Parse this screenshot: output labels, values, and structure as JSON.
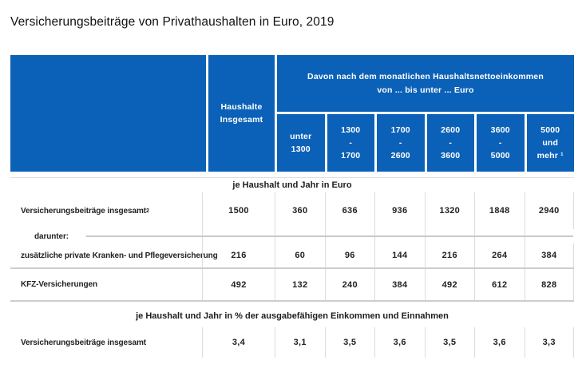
{
  "page": {
    "title": "Versicherungsbeiträge von Privathaushalten in Euro, 2019"
  },
  "colors": {
    "header_blue": "#0b61b7",
    "header_text": "#ffffff",
    "grid_line": "#dcdcdc",
    "body_text": "#222222"
  },
  "header": {
    "total_col": "Haushalte\nInsgesamt",
    "income_group": "Davon nach dem monatlichen Haushaltsnettoeinkommen\nvon ... bis unter ... Euro",
    "income_cols": [
      "unter\n1300",
      "1300\n-\n1700",
      "1700\n-\n2600",
      "2600\n-\n3600",
      "3600\n-\n5000",
      "5000\nund\nmehr ¹"
    ]
  },
  "section_euro": {
    "title": "je Haushalt und Jahr in Euro",
    "row_total": {
      "label": "Versicherungsbeiträge insgesamt",
      "footnote": "2",
      "values": [
        "1500",
        "360",
        "636",
        "936",
        "1320",
        "1848",
        "2940"
      ]
    },
    "darunter_label": "darunter:",
    "row_kranken": {
      "label": "zusätzliche private Kranken- und Pflegeversicherung",
      "values": [
        "216",
        "60",
        "96",
        "144",
        "216",
        "264",
        "384"
      ]
    },
    "row_kfz": {
      "label": "KFZ-Versicherungen",
      "values": [
        "492",
        "132",
        "240",
        "384",
        "492",
        "612",
        "828"
      ]
    }
  },
  "section_percent": {
    "title": "je Haushalt und Jahr in % der ausgabefähigen Einkommen und Einnahmen",
    "row_total": {
      "label": "Versicherungsbeiträge insgesamt",
      "values": [
        "3,4",
        "3,1",
        "3,5",
        "3,6",
        "3,5",
        "3,6",
        "3,3"
      ]
    }
  },
  "chart_data": {
    "type": "table",
    "title": "Versicherungsbeiträge von Privathaushalten in Euro, 2019",
    "column_group_header": "Davon nach dem monatlichen Haushaltsnettoeinkommen von ... bis unter ... Euro",
    "columns": [
      "Haushalte Insgesamt",
      "unter 1300",
      "1300 - 1700",
      "1700 - 2600",
      "2600 - 3600",
      "3600 - 5000",
      "5000 und mehr"
    ],
    "sections": [
      {
        "unit": "je Haushalt und Jahr in Euro",
        "rows": [
          {
            "label": "Versicherungsbeiträge insgesamt",
            "values": [
              1500,
              360,
              636,
              936,
              1320,
              1848,
              2940
            ]
          },
          {
            "label": "darunter: zusätzliche private Kranken- und Pflegeversicherung",
            "values": [
              216,
              60,
              96,
              144,
              216,
              264,
              384
            ]
          },
          {
            "label": "darunter: KFZ-Versicherungen",
            "values": [
              492,
              132,
              240,
              384,
              492,
              612,
              828
            ]
          }
        ]
      },
      {
        "unit": "je Haushalt und Jahr in % der ausgabefähigen Einkommen und Einnahmen",
        "rows": [
          {
            "label": "Versicherungsbeiträge insgesamt",
            "values": [
              3.4,
              3.1,
              3.5,
              3.6,
              3.5,
              3.6,
              3.3
            ]
          }
        ]
      }
    ]
  }
}
